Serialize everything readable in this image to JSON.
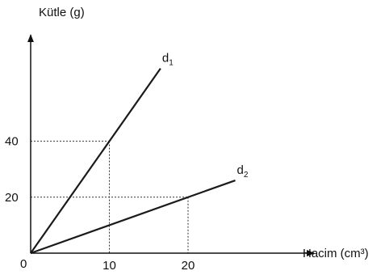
{
  "chart_data": {
    "type": "line",
    "xlabel": "Hacim (cm³)",
    "ylabel": "Kütle (g)",
    "origin_label": "0",
    "x_ticks": [
      10,
      20
    ],
    "y_ticks": [
      20,
      40
    ],
    "xlim": [
      0,
      36
    ],
    "ylim": [
      0,
      78
    ],
    "grid": false,
    "guides": [
      {
        "x": 10,
        "y": 40
      },
      {
        "x": 20,
        "y": 20
      }
    ],
    "series": [
      {
        "name": "d1",
        "base": "d",
        "sub": "1",
        "x": [
          0,
          16.5
        ],
        "y": [
          0,
          66
        ]
      },
      {
        "name": "d2",
        "base": "d",
        "sub": "2",
        "x": [
          0,
          26
        ],
        "y": [
          0,
          26
        ]
      }
    ],
    "colors": {
      "line": "#1a1a1a",
      "guide": "#333333",
      "text": "#111111"
    }
  }
}
